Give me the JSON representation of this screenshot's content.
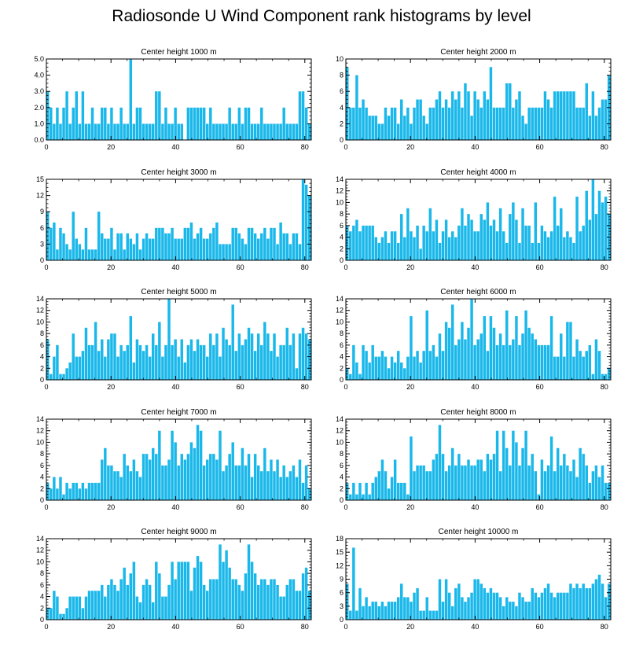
{
  "title": "Radiosonde U Wind Component rank histograms by level",
  "bar_color": "#1ab8ea",
  "chart_data": [
    {
      "type": "bar",
      "title": "Center height 1000 m",
      "xlim": [
        0,
        82
      ],
      "xticks": [
        0,
        20,
        40,
        60,
        80
      ],
      "ylim": [
        0,
        5
      ],
      "yticks": [
        "0.0",
        "1.0",
        "2.0",
        "3.0",
        "4.0",
        "5.0"
      ],
      "values": [
        3,
        2,
        1,
        2,
        1,
        2,
        3,
        1,
        2,
        3,
        1,
        3,
        1,
        1,
        2,
        1,
        1,
        2,
        2,
        1,
        2,
        1,
        1,
        2,
        1,
        1,
        5,
        1,
        2,
        2,
        1,
        1,
        1,
        1,
        3,
        3,
        1,
        2,
        1,
        1,
        2,
        1,
        1,
        0,
        2,
        2,
        2,
        2,
        2,
        2,
        1,
        2,
        1,
        1,
        1,
        1,
        1,
        2,
        1,
        1,
        2,
        1,
        2,
        2,
        1,
        1,
        1,
        2,
        1,
        1,
        1,
        1,
        1,
        1,
        2,
        1,
        1,
        1,
        1,
        3,
        3,
        2,
        1
      ]
    },
    {
      "type": "bar",
      "title": "Center height 2000 m",
      "xlim": [
        0,
        82
      ],
      "xticks": [
        0,
        20,
        40,
        60,
        80
      ],
      "ylim": [
        0,
        10
      ],
      "yticks": [
        "0",
        "2",
        "4",
        "6",
        "8",
        "10"
      ],
      "values": [
        9,
        4,
        4,
        8,
        4,
        5,
        4,
        3,
        3,
        3,
        2,
        2,
        4,
        3,
        4,
        4,
        2,
        5,
        3,
        4,
        2,
        4,
        5,
        5,
        3,
        2,
        4,
        4,
        5,
        6,
        4,
        5,
        4,
        6,
        5,
        6,
        4,
        7,
        6,
        3,
        6,
        5,
        4,
        6,
        5,
        9,
        4,
        4,
        4,
        4,
        7,
        7,
        4,
        5,
        6,
        3,
        2,
        4,
        4,
        4,
        4,
        4,
        6,
        5,
        4,
        6,
        6,
        6,
        6,
        6,
        6,
        6,
        4,
        4,
        4,
        7,
        3,
        6,
        3,
        4,
        5,
        5,
        8
      ]
    },
    {
      "type": "bar",
      "title": "Center height 3000 m",
      "xlim": [
        0,
        82
      ],
      "xticks": [
        0,
        20,
        40,
        60,
        80
      ],
      "ylim": [
        0,
        15
      ],
      "yticks": [
        "0",
        "3",
        "6",
        "9",
        "12",
        "15"
      ],
      "values": [
        9,
        6,
        7,
        2,
        6,
        5,
        3,
        2,
        9,
        4,
        3,
        2,
        6,
        2,
        2,
        2,
        9,
        5,
        4,
        4,
        6,
        2,
        5,
        5,
        2,
        5,
        4,
        3,
        5,
        2,
        4,
        5,
        4,
        4,
        6,
        6,
        6,
        5,
        5,
        6,
        4,
        4,
        4,
        6,
        6,
        7,
        4,
        5,
        6,
        4,
        4,
        5,
        6,
        7,
        3,
        3,
        3,
        3,
        6,
        6,
        5,
        4,
        3,
        6,
        6,
        5,
        4,
        5,
        6,
        4,
        6,
        6,
        3,
        7,
        5,
        5,
        3,
        5,
        5,
        3,
        15,
        14,
        12
      ]
    },
    {
      "type": "bar",
      "title": "Center height 4000 m",
      "xlim": [
        0,
        82
      ],
      "xticks": [
        0,
        20,
        40,
        60,
        80
      ],
      "ylim": [
        0,
        14
      ],
      "yticks": [
        "0",
        "2",
        "4",
        "6",
        "8",
        "10",
        "12",
        "14"
      ],
      "values": [
        6,
        5,
        6,
        7,
        5,
        6,
        6,
        6,
        6,
        4,
        3,
        4,
        5,
        3,
        5,
        5,
        3,
        8,
        4,
        9,
        5,
        4,
        6,
        2,
        6,
        5,
        9,
        5,
        7,
        3,
        5,
        7,
        4,
        5,
        4,
        6,
        9,
        6,
        8,
        7,
        5,
        5,
        8,
        7,
        10,
        6,
        7,
        5,
        9,
        5,
        3,
        8,
        10,
        7,
        3,
        9,
        6,
        6,
        3,
        10,
        3,
        6,
        5,
        4,
        5,
        11,
        6,
        9,
        4,
        5,
        4,
        3,
        11,
        5,
        6,
        12,
        7,
        14,
        8,
        12,
        10,
        11,
        8
      ]
    },
    {
      "type": "bar",
      "title": "Center height 5000 m",
      "xlim": [
        0,
        82
      ],
      "xticks": [
        0,
        20,
        40,
        60,
        80
      ],
      "ylim": [
        0,
        14
      ],
      "yticks": [
        "0",
        "2",
        "4",
        "6",
        "8",
        "10",
        "12",
        "14"
      ],
      "values": [
        7,
        1,
        4,
        6,
        1,
        1,
        2,
        3,
        8,
        4,
        4,
        5,
        9,
        6,
        6,
        10,
        5,
        7,
        4,
        7,
        8,
        8,
        4,
        6,
        5,
        6,
        11,
        3,
        7,
        6,
        5,
        6,
        4,
        8,
        6,
        10,
        4,
        6,
        14,
        6,
        7,
        4,
        7,
        3,
        6,
        7,
        5,
        7,
        6,
        6,
        4,
        8,
        6,
        8,
        4,
        9,
        7,
        6,
        13,
        5,
        8,
        6,
        7,
        9,
        8,
        5,
        8,
        6,
        10,
        8,
        5,
        8,
        4,
        6,
        6,
        9,
        6,
        8,
        2,
        8,
        9,
        8,
        7
      ]
    },
    {
      "type": "bar",
      "title": "Center height 6000 m",
      "xlim": [
        0,
        82
      ],
      "xticks": [
        0,
        20,
        40,
        60,
        80
      ],
      "ylim": [
        0,
        14
      ],
      "yticks": [
        "0",
        "2",
        "4",
        "6",
        "8",
        "10",
        "12",
        "14"
      ],
      "values": [
        2,
        1,
        6,
        3,
        1,
        6,
        5,
        3,
        6,
        4,
        4,
        5,
        4,
        2,
        4,
        3,
        5,
        3,
        2,
        4,
        11,
        4,
        5,
        3,
        5,
        12,
        5,
        6,
        4,
        8,
        5,
        10,
        9,
        13,
        6,
        7,
        10,
        7,
        9,
        14,
        6,
        7,
        8,
        11,
        5,
        11,
        9,
        6,
        8,
        6,
        12,
        6,
        7,
        11,
        6,
        8,
        12,
        9,
        8,
        7,
        6,
        6,
        6,
        6,
        11,
        4,
        4,
        8,
        4,
        10,
        10,
        4,
        7,
        5,
        4,
        5,
        6,
        1,
        7,
        5,
        1,
        1,
        2
      ]
    },
    {
      "type": "bar",
      "title": "Center height 7000 m",
      "xlim": [
        0,
        82
      ],
      "xticks": [
        0,
        20,
        40,
        60,
        80
      ],
      "ylim": [
        0,
        14
      ],
      "yticks": [
        "0",
        "2",
        "4",
        "6",
        "8",
        "10",
        "12",
        "14"
      ],
      "values": [
        3,
        2,
        4,
        2,
        4,
        1,
        3,
        2,
        3,
        3,
        2,
        3,
        2,
        3,
        3,
        3,
        3,
        7,
        9,
        6,
        6,
        5,
        5,
        4,
        8,
        6,
        5,
        7,
        5,
        4,
        8,
        8,
        7,
        9,
        8,
        12,
        6,
        6,
        7,
        12,
        10,
        6,
        8,
        7,
        8,
        10,
        9,
        13,
        12,
        6,
        7,
        8,
        8,
        7,
        12,
        5,
        6,
        8,
        10,
        6,
        6,
        9,
        6,
        8,
        4,
        8,
        6,
        5,
        9,
        5,
        7,
        5,
        7,
        4,
        6,
        4,
        5,
        6,
        4,
        7,
        3,
        6,
        2
      ]
    },
    {
      "type": "bar",
      "title": "Center height 8000 m",
      "xlim": [
        0,
        82
      ],
      "xticks": [
        0,
        20,
        40,
        60,
        80
      ],
      "ylim": [
        0,
        14
      ],
      "yticks": [
        "0",
        "2",
        "4",
        "6",
        "8",
        "10",
        "12",
        "14"
      ],
      "values": [
        3,
        1,
        3,
        1,
        3,
        1,
        3,
        1,
        3,
        4,
        5,
        7,
        5,
        2,
        4,
        7,
        3,
        3,
        3,
        1,
        11,
        5,
        6,
        6,
        6,
        5,
        5,
        7,
        8,
        13,
        8,
        5,
        6,
        9,
        6,
        8,
        6,
        6,
        7,
        6,
        6,
        7,
        7,
        5,
        8,
        7,
        8,
        12,
        5,
        12,
        9,
        6,
        12,
        10,
        6,
        9,
        12,
        6,
        8,
        5,
        1,
        7,
        5,
        6,
        11,
        5,
        9,
        6,
        8,
        6,
        5,
        7,
        4,
        9,
        8,
        6,
        3,
        5,
        6,
        4,
        6,
        3,
        3
      ]
    },
    {
      "type": "bar",
      "title": "Center height 9000 m",
      "xlim": [
        0,
        82
      ],
      "xticks": [
        0,
        20,
        40,
        60,
        80
      ],
      "ylim": [
        0,
        14
      ],
      "yticks": [
        "0",
        "2",
        "4",
        "6",
        "8",
        "10",
        "12",
        "14"
      ],
      "values": [
        2,
        2,
        5,
        4,
        1,
        1,
        2,
        4,
        4,
        4,
        4,
        2,
        4,
        5,
        5,
        5,
        5,
        6,
        4,
        6,
        7,
        6,
        5,
        7,
        9,
        6,
        8,
        10,
        4,
        3,
        6,
        7,
        6,
        3,
        10,
        8,
        4,
        4,
        6,
        10,
        7,
        10,
        10,
        10,
        10,
        5,
        9,
        11,
        10,
        6,
        5,
        7,
        7,
        7,
        13,
        10,
        12,
        9,
        7,
        7,
        6,
        5,
        8,
        13,
        10,
        8,
        6,
        7,
        7,
        6,
        7,
        7,
        6,
        4,
        4,
        6,
        7,
        7,
        5,
        5,
        8,
        9,
        5
      ]
    },
    {
      "type": "bar",
      "title": "Center height 10000 m",
      "xlim": [
        0,
        82
      ],
      "xticks": [
        0,
        20,
        40,
        60,
        80
      ],
      "ylim": [
        0,
        18
      ],
      "yticks": [
        "0",
        "3",
        "6",
        "9",
        "12",
        "15",
        "18"
      ],
      "values": [
        8,
        2,
        16,
        2,
        7,
        3,
        5,
        3,
        4,
        4,
        3,
        4,
        3,
        4,
        4,
        4,
        5,
        8,
        5,
        5,
        4,
        6,
        7,
        2,
        2,
        5,
        2,
        2,
        2,
        9,
        4,
        9,
        6,
        3,
        7,
        8,
        5,
        4,
        5,
        6,
        9,
        9,
        8,
        7,
        6,
        7,
        6,
        6,
        5,
        3,
        5,
        4,
        4,
        3,
        6,
        5,
        4,
        4,
        7,
        6,
        5,
        6,
        7,
        8,
        6,
        5,
        6,
        6,
        6,
        6,
        8,
        7,
        8,
        7,
        8,
        7,
        7,
        8,
        9,
        10,
        8,
        5,
        8
      ]
    }
  ]
}
